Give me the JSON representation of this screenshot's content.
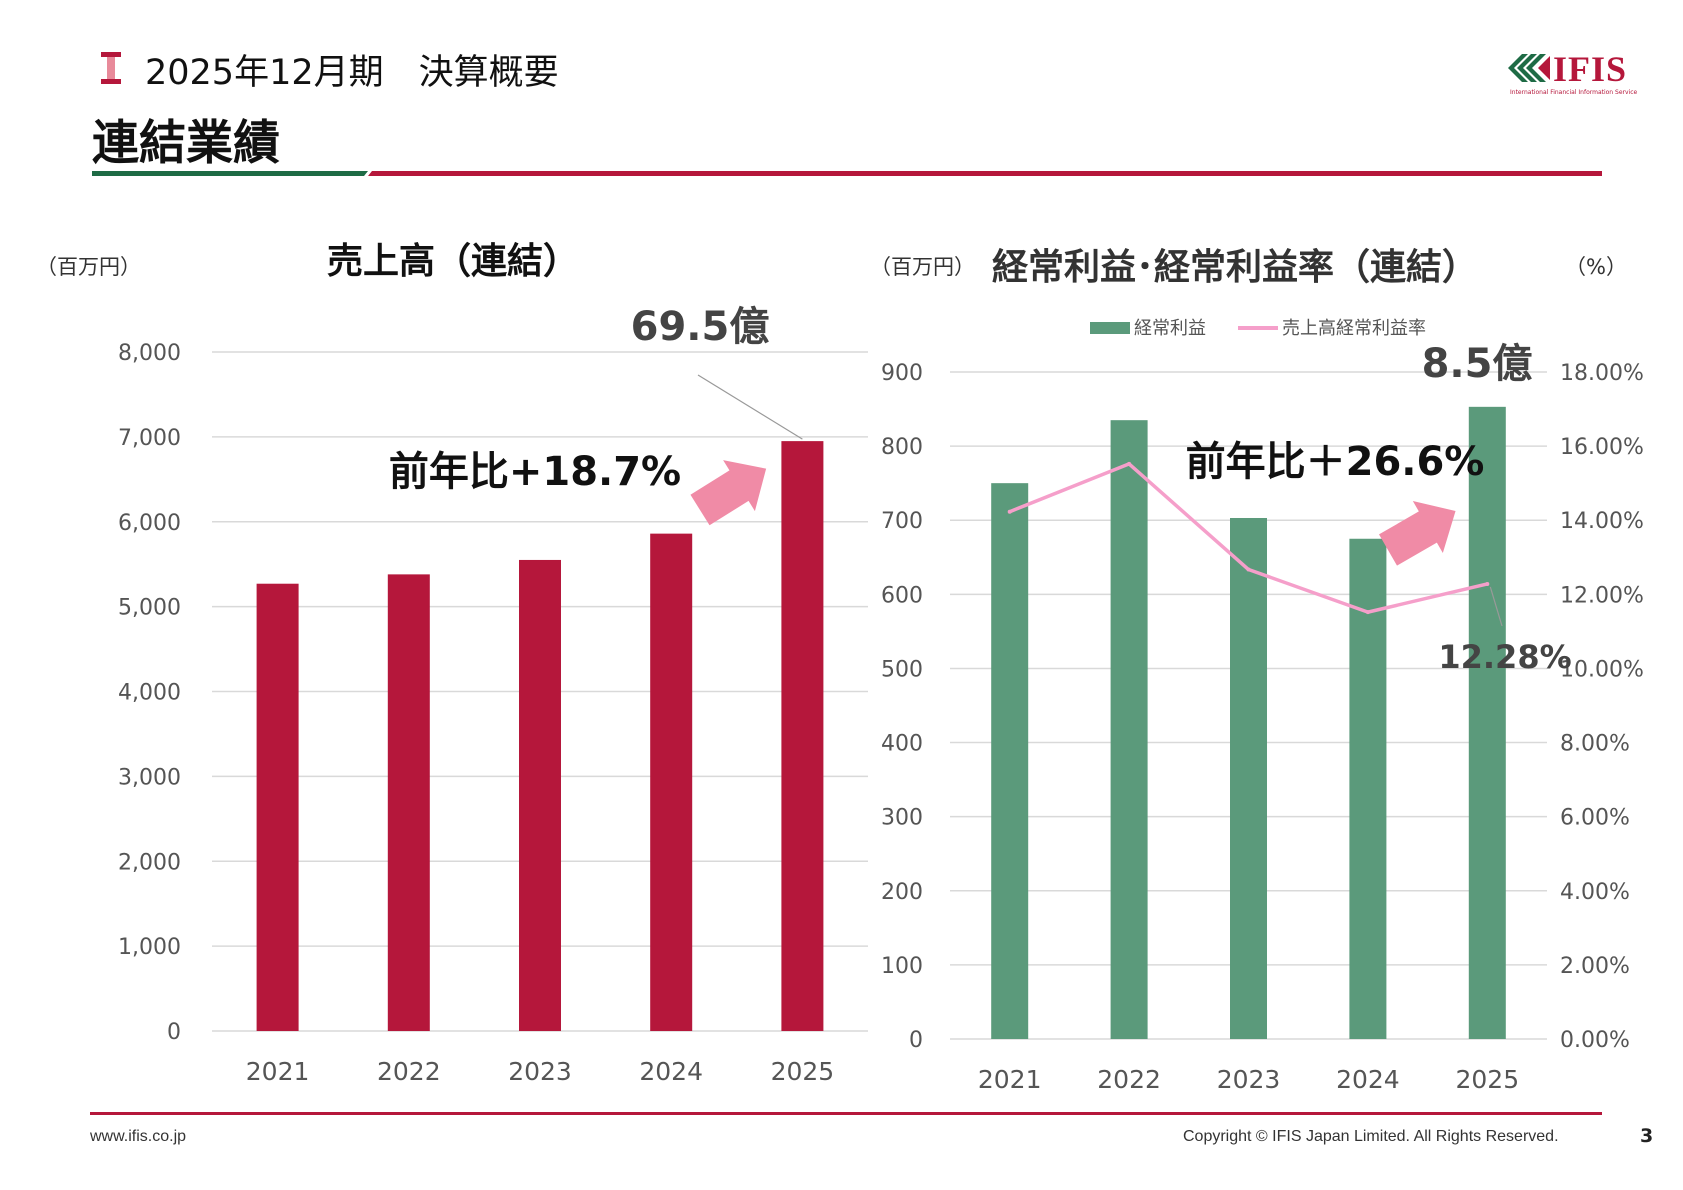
{
  "header": {
    "period_title": "2025年12月期　決算概要",
    "page_title": "連結業績"
  },
  "logo": {
    "name": "IFIS",
    "tagline": "International Financial Information Service"
  },
  "colors": {
    "revenue_bar": "#b5173b",
    "profit_bar": "#5b9a7b",
    "margin_line": "#f59fca",
    "arrow": "#f08ba6",
    "accent_green": "#1e6b45"
  },
  "chart_data": [
    {
      "type": "bar",
      "title": "売上高（連結）",
      "ylabel": "（百万円）",
      "categories": [
        "2021",
        "2022",
        "2023",
        "2024",
        "2025"
      ],
      "values": [
        5270,
        5380,
        5550,
        5860,
        6950
      ],
      "ylim": [
        0,
        8000
      ],
      "yticks": [
        0,
        1000,
        2000,
        3000,
        4000,
        5000,
        6000,
        7000,
        8000
      ],
      "ytick_labels": [
        "0",
        "1,000",
        "2,000",
        "3,000",
        "4,000",
        "5,000",
        "6,000",
        "7,000",
        "8,000"
      ],
      "grid": true,
      "annotations": {
        "latest_value": "69.5億",
        "yoy": "前年比+18.7%"
      }
    },
    {
      "type": "bar",
      "title": "経常利益･経常利益率（連結）",
      "ylabel": "（百万円）",
      "y2label": "（%）",
      "categories": [
        "2021",
        "2022",
        "2023",
        "2024",
        "2025"
      ],
      "series": [
        {
          "name": "経常利益",
          "type": "bar",
          "axis": "left",
          "values": [
            750,
            835,
            703,
            675,
            853
          ]
        },
        {
          "name": "売上高経常利益率",
          "type": "line",
          "axis": "right",
          "values": [
            14.23,
            15.52,
            12.67,
            11.52,
            12.28
          ]
        }
      ],
      "ylim": [
        0,
        900
      ],
      "yticks": [
        0,
        100,
        200,
        300,
        400,
        500,
        600,
        700,
        800,
        900
      ],
      "ytick_labels": [
        "0",
        "100",
        "200",
        "300",
        "400",
        "500",
        "600",
        "700",
        "800",
        "900"
      ],
      "y2lim": [
        0,
        18
      ],
      "y2ticks": [
        0,
        2,
        4,
        6,
        8,
        10,
        12,
        14,
        16,
        18
      ],
      "y2tick_labels": [
        "0.00%",
        "2.00%",
        "4.00%",
        "6.00%",
        "8.00%",
        "10.00%",
        "12.00%",
        "14.00%",
        "16.00%",
        "18.00%"
      ],
      "legend_position": "top",
      "grid": true,
      "annotations": {
        "latest_value": "8.5億",
        "yoy": "前年比＋26.6%",
        "latest_margin": "12.28%"
      }
    }
  ],
  "footer": {
    "url": "www.ifis.co.jp",
    "copyright": "Copyright © IFIS Japan Limited. All Rights Reserved.",
    "page": "3"
  }
}
